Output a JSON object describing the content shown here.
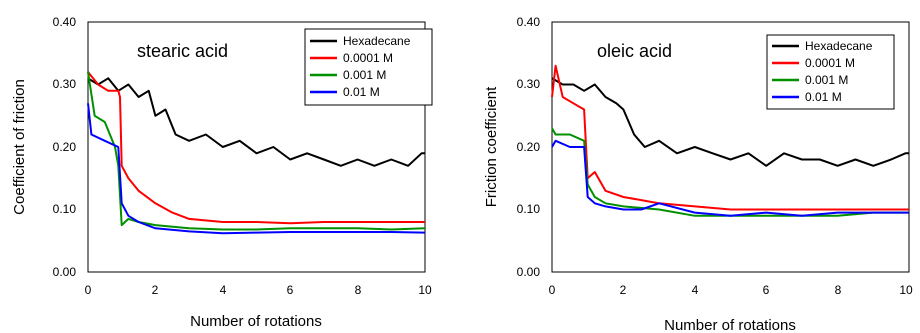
{
  "chart_data": [
    {
      "type": "line",
      "annotation": "stearic acid",
      "xlabel": "Number of rotations",
      "ylabel": "Coefficient of friction",
      "xlim": [
        0,
        10
      ],
      "ylim": [
        0,
        0.4
      ],
      "xticks": [
        "0",
        "2",
        "4",
        "6",
        "8",
        "10"
      ],
      "yticks": [
        "0.00",
        "0.10",
        "0.20",
        "0.30",
        "0.40"
      ],
      "grid": false,
      "legend_position": "top-right",
      "series": [
        {
          "name": "Hexadecane",
          "color": "#000000",
          "x": [
            0,
            0.3,
            0.6,
            0.9,
            1.2,
            1.5,
            1.8,
            2.0,
            2.3,
            2.6,
            3.0,
            3.5,
            4.0,
            4.5,
            5.0,
            5.5,
            6.0,
            6.5,
            7.0,
            7.5,
            8.0,
            8.5,
            9.0,
            9.5,
            9.9,
            10.0
          ],
          "y": [
            0.31,
            0.3,
            0.31,
            0.29,
            0.3,
            0.28,
            0.29,
            0.25,
            0.26,
            0.22,
            0.21,
            0.22,
            0.2,
            0.21,
            0.19,
            0.2,
            0.18,
            0.19,
            0.18,
            0.17,
            0.18,
            0.17,
            0.18,
            0.17,
            0.19,
            0.19
          ]
        },
        {
          "name": "0.0001 M",
          "color": "#ff0000",
          "x": [
            0,
            0.3,
            0.6,
            0.9,
            0.95,
            1.0,
            1.2,
            1.5,
            2.0,
            2.5,
            3.0,
            4.0,
            5.0,
            6.0,
            7.0,
            8.0,
            9.0,
            10.0
          ],
          "y": [
            0.32,
            0.3,
            0.29,
            0.29,
            0.28,
            0.17,
            0.15,
            0.13,
            0.11,
            0.095,
            0.085,
            0.08,
            0.08,
            0.078,
            0.08,
            0.08,
            0.08,
            0.08
          ]
        },
        {
          "name": "0.001 M",
          "color": "#009000",
          "x": [
            0,
            0.2,
            0.5,
            0.8,
            0.9,
            1.0,
            1.2,
            1.5,
            2.0,
            3.0,
            4.0,
            5.0,
            6.0,
            7.0,
            8.0,
            9.0,
            10.0
          ],
          "y": [
            0.32,
            0.25,
            0.24,
            0.2,
            0.17,
            0.075,
            0.085,
            0.08,
            0.075,
            0.07,
            0.068,
            0.068,
            0.07,
            0.07,
            0.07,
            0.068,
            0.07
          ]
        },
        {
          "name": "0.01 M",
          "color": "#0000ff",
          "x": [
            0,
            0.1,
            0.5,
            0.9,
            1.0,
            1.2,
            1.5,
            2.0,
            3.0,
            4.0,
            5.0,
            6.0,
            7.0,
            8.0,
            9.0,
            10.0
          ],
          "y": [
            0.27,
            0.22,
            0.21,
            0.2,
            0.11,
            0.09,
            0.08,
            0.07,
            0.065,
            0.062,
            0.063,
            0.064,
            0.064,
            0.064,
            0.064,
            0.063
          ]
        }
      ]
    },
    {
      "type": "line",
      "annotation": "oleic acid",
      "xlabel": "Number of rotations",
      "ylabel": "Friction coefficient",
      "xlim": [
        0,
        10
      ],
      "ylim": [
        0,
        0.4
      ],
      "xticks": [
        "0",
        "2",
        "4",
        "6",
        "8",
        "10"
      ],
      "yticks": [
        "0.00",
        "0.10",
        "0.20",
        "0.30",
        "0.40"
      ],
      "grid": false,
      "legend_position": "top-right",
      "series": [
        {
          "name": "Hexadecane",
          "color": "#000000",
          "x": [
            0,
            0.3,
            0.6,
            0.9,
            1.2,
            1.5,
            1.8,
            2.0,
            2.3,
            2.6,
            3.0,
            3.5,
            4.0,
            4.5,
            5.0,
            5.5,
            6.0,
            6.5,
            7.0,
            7.5,
            8.0,
            8.5,
            9.0,
            9.5,
            9.9,
            10.0
          ],
          "y": [
            0.31,
            0.3,
            0.3,
            0.29,
            0.3,
            0.28,
            0.27,
            0.26,
            0.22,
            0.2,
            0.21,
            0.19,
            0.2,
            0.19,
            0.18,
            0.19,
            0.17,
            0.19,
            0.18,
            0.18,
            0.17,
            0.18,
            0.17,
            0.18,
            0.19,
            0.19
          ]
        },
        {
          "name": "0.0001 M",
          "color": "#ff0000",
          "x": [
            0,
            0.1,
            0.3,
            0.6,
            0.9,
            1.0,
            1.2,
            1.5,
            2.0,
            2.5,
            3.0,
            4.0,
            5.0,
            6.0,
            7.0,
            8.0,
            9.0,
            10.0
          ],
          "y": [
            0.28,
            0.33,
            0.28,
            0.27,
            0.26,
            0.15,
            0.16,
            0.13,
            0.12,
            0.115,
            0.11,
            0.105,
            0.1,
            0.1,
            0.1,
            0.1,
            0.1,
            0.1
          ]
        },
        {
          "name": "0.001 M",
          "color": "#009000",
          "x": [
            0,
            0.1,
            0.5,
            0.9,
            1.0,
            1.2,
            1.5,
            2.0,
            3.0,
            4.0,
            5.0,
            6.0,
            7.0,
            8.0,
            9.0,
            10.0
          ],
          "y": [
            0.23,
            0.22,
            0.22,
            0.21,
            0.14,
            0.12,
            0.11,
            0.105,
            0.1,
            0.09,
            0.09,
            0.09,
            0.09,
            0.09,
            0.095,
            0.095
          ]
        },
        {
          "name": "0.01 M",
          "color": "#0000ff",
          "x": [
            0,
            0.1,
            0.5,
            0.9,
            1.0,
            1.2,
            1.5,
            2.0,
            2.5,
            3.0,
            4.0,
            5.0,
            6.0,
            7.0,
            8.0,
            9.0,
            10.0
          ],
          "y": [
            0.2,
            0.21,
            0.2,
            0.2,
            0.12,
            0.11,
            0.105,
            0.1,
            0.1,
            0.11,
            0.095,
            0.09,
            0.095,
            0.09,
            0.095,
            0.095,
            0.095
          ]
        }
      ]
    }
  ]
}
